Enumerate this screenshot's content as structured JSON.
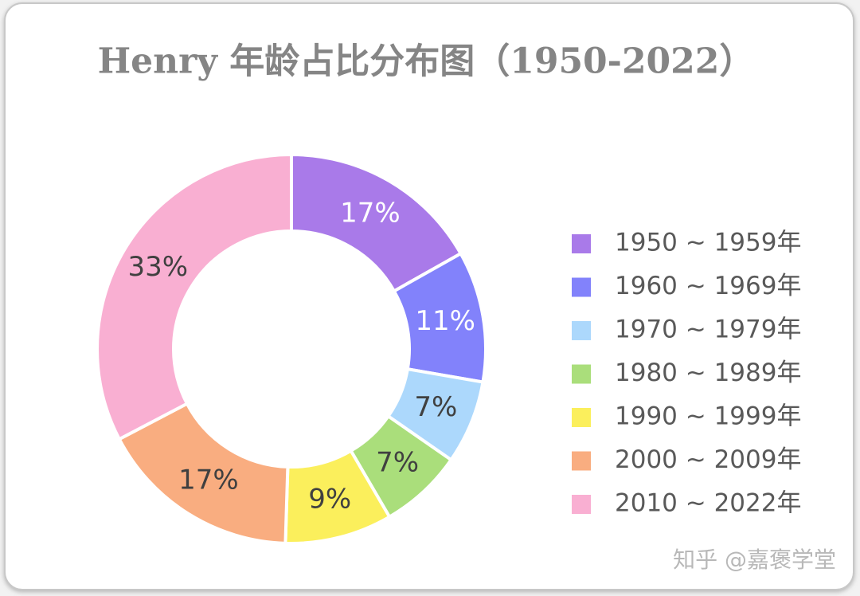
{
  "chart_data": {
    "type": "donut",
    "title": "Henry  年龄占比分布图（1950-2022）",
    "categories": [
      "1950 ~ 1959年",
      "1960 ~ 1969年",
      "1970 ~ 1979年",
      "1980 ~ 1989年",
      "1990 ~ 1999年",
      "2000 ~ 2009年",
      "2010 ~ 2022年"
    ],
    "values": [
      17,
      11,
      7,
      7,
      9,
      17,
      33
    ],
    "value_labels": [
      "17%",
      "11%",
      "7%",
      "7%",
      "9%",
      "17%",
      "33%"
    ],
    "colors": [
      "#a97ae9",
      "#8282fb",
      "#acd8fc",
      "#aade7b",
      "#fbef5c",
      "#f9ad80",
      "#f9afd2"
    ],
    "legend": "right",
    "watermark": "知乎 @嘉褒学堂"
  }
}
